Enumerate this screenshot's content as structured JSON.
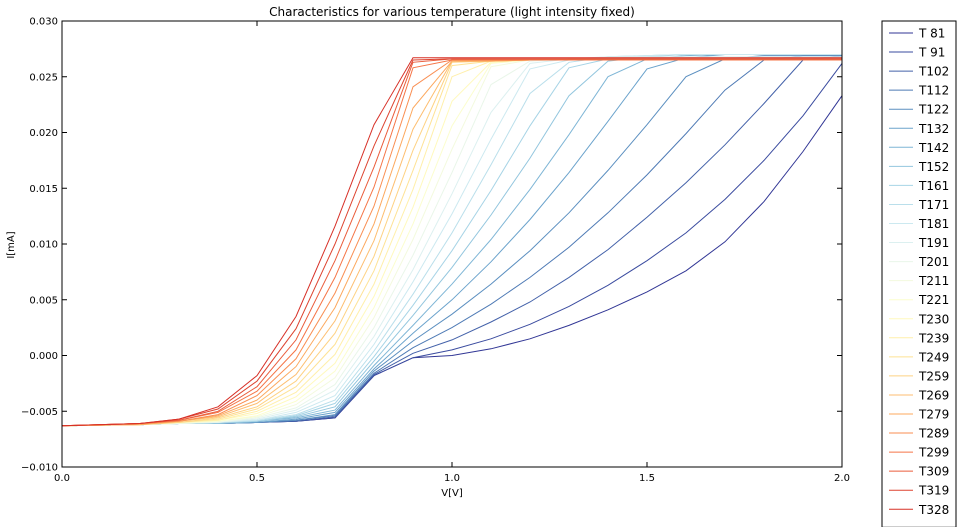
{
  "chart_data": {
    "type": "line",
    "title": "Characteristics for various temperature (light intensity fixed)",
    "xlabel": "V[V]",
    "ylabel": "I[mA]",
    "xlim": [
      0.0,
      2.0
    ],
    "ylim": [
      -0.01,
      0.03
    ],
    "x_ticks": [
      0.0,
      0.5,
      1.0,
      1.5,
      2.0
    ],
    "x_tick_labels": [
      "0.0",
      "0.5",
      "1.0",
      "1.5",
      "2.0"
    ],
    "y_ticks": [
      -0.01,
      -0.005,
      0.0,
      0.005,
      0.01,
      0.015,
      0.02,
      0.025,
      0.03
    ],
    "y_tick_labels": [
      "−0.010",
      "−0.005",
      "0.000",
      "0.005",
      "0.010",
      "0.015",
      "0.020",
      "0.025",
      "0.030"
    ],
    "grid": false,
    "legend_position": "outside-right",
    "x": [
      0.0,
      0.2,
      0.3,
      0.4,
      0.5,
      0.6,
      0.7,
      0.8,
      0.9,
      1.0,
      1.1,
      1.2,
      1.3,
      1.4,
      1.5,
      1.6,
      1.7,
      1.8,
      1.9,
      2.0
    ],
    "series": [
      {
        "name": "T 81",
        "color": "#313695",
        "values": [
          -0.0063,
          -0.0062,
          -0.0061,
          -0.0061,
          -0.006,
          -0.0059,
          -0.0056,
          -0.0018,
          -0.0002,
          0.0,
          0.0006,
          0.0015,
          0.0027,
          0.0041,
          0.0057,
          0.0076,
          0.0102,
          0.0138,
          0.0183,
          0.0233
        ]
      },
      {
        "name": "T 91",
        "color": "#3a4b9f",
        "values": [
          -0.0063,
          -0.0062,
          -0.0061,
          -0.0061,
          -0.006,
          -0.0059,
          -0.0056,
          -0.0018,
          -0.0002,
          0.0005,
          0.0015,
          0.0028,
          0.0044,
          0.0063,
          0.0085,
          0.011,
          0.014,
          0.0175,
          0.0215,
          0.0262
        ]
      },
      {
        "name": "T102",
        "color": "#4361a9",
        "values": [
          -0.0063,
          -0.0062,
          -0.0061,
          -0.0061,
          -0.006,
          -0.0059,
          -0.0055,
          -0.0017,
          0.0002,
          0.0014,
          0.003,
          0.0048,
          0.007,
          0.0095,
          0.0124,
          0.0155,
          0.0189,
          0.0226,
          0.0265,
          0.0269
        ]
      },
      {
        "name": "T112",
        "color": "#4e7ab5",
        "values": [
          -0.0063,
          -0.0062,
          -0.0061,
          -0.0061,
          -0.006,
          -0.0058,
          -0.0054,
          -0.0016,
          0.0007,
          0.0025,
          0.0046,
          0.007,
          0.0097,
          0.0128,
          0.0162,
          0.0199,
          0.0238,
          0.0265,
          0.0269,
          0.0269
        ]
      },
      {
        "name": "T122",
        "color": "#5b8fc0",
        "values": [
          -0.0063,
          -0.0062,
          -0.0061,
          -0.0061,
          -0.006,
          -0.0058,
          -0.0053,
          -0.0014,
          0.0013,
          0.0037,
          0.0064,
          0.0094,
          0.0128,
          0.0166,
          0.0207,
          0.025,
          0.0266,
          0.0269,
          0.0269,
          0.0269
        ]
      },
      {
        "name": "T132",
        "color": "#6ba3cc",
        "values": [
          -0.0063,
          -0.0062,
          -0.0061,
          -0.0061,
          -0.006,
          -0.0057,
          -0.0051,
          -0.0012,
          0.002,
          0.005,
          0.0084,
          0.0122,
          0.0164,
          0.021,
          0.0257,
          0.0267,
          0.027,
          0.027,
          0.027,
          0.027
        ]
      },
      {
        "name": "T142",
        "color": "#7fb6d6",
        "values": [
          -0.0063,
          -0.0062,
          -0.0061,
          -0.0061,
          -0.0059,
          -0.0056,
          -0.0049,
          -0.0009,
          0.0027,
          0.0064,
          0.0104,
          0.0149,
          0.0198,
          0.025,
          0.0266,
          0.0269,
          0.027,
          0.027,
          0.027,
          0.027
        ]
      },
      {
        "name": "T152",
        "color": "#93c6de",
        "values": [
          -0.0063,
          -0.0062,
          -0.0061,
          -0.0061,
          -0.0059,
          -0.0055,
          -0.0046,
          -0.0005,
          0.0036,
          0.0079,
          0.0126,
          0.0177,
          0.0233,
          0.0264,
          0.0268,
          0.027,
          0.027,
          0.027,
          0.027,
          0.027
        ]
      },
      {
        "name": "T161",
        "color": "#a7d4e6",
        "values": [
          -0.0063,
          -0.0062,
          -0.0061,
          -0.006,
          -0.0059,
          -0.0054,
          -0.0043,
          -0.0001,
          0.0045,
          0.0094,
          0.0148,
          0.0206,
          0.0258,
          0.0266,
          0.0269,
          0.027,
          0.027,
          0.027,
          0.027,
          0.027
        ]
      },
      {
        "name": "T171",
        "color": "#badfeb",
        "values": [
          -0.0063,
          -0.0062,
          -0.0061,
          -0.006,
          -0.0058,
          -0.0053,
          -0.004,
          0.0004,
          0.0055,
          0.011,
          0.0171,
          0.0235,
          0.0263,
          0.0268,
          0.0269,
          0.027,
          0.027,
          0.027,
          0.027,
          0.027
        ]
      },
      {
        "name": "T181",
        "color": "#cce9f0",
        "values": [
          -0.0063,
          -0.0062,
          -0.0061,
          -0.006,
          -0.0058,
          -0.0051,
          -0.0036,
          0.001,
          0.0066,
          0.0127,
          0.0194,
          0.0257,
          0.0265,
          0.0268,
          0.0269,
          0.027,
          0.027,
          0.027,
          0.027,
          0.027
        ]
      },
      {
        "name": "T191",
        "color": "#dcf0f0",
        "values": [
          -0.0063,
          -0.0062,
          -0.0061,
          -0.006,
          -0.0057,
          -0.0049,
          -0.0031,
          0.0017,
          0.0077,
          0.0145,
          0.0218,
          0.0262,
          0.0266,
          0.0268,
          0.0268,
          0.0268,
          0.0268,
          0.0268,
          0.0268,
          0.0268
        ]
      },
      {
        "name": "T201",
        "color": "#e9f6e9",
        "values": [
          -0.0063,
          -0.0062,
          -0.0061,
          -0.006,
          -0.0056,
          -0.0047,
          -0.0026,
          0.0025,
          0.009,
          0.0164,
          0.0243,
          0.0264,
          0.0266,
          0.0267,
          0.0267,
          0.0267,
          0.0267,
          0.0267,
          0.0267,
          0.0267
        ]
      },
      {
        "name": "T211",
        "color": "#f3fade",
        "values": [
          -0.0063,
          -0.0062,
          -0.0061,
          -0.0059,
          -0.0055,
          -0.0044,
          -0.002,
          0.0034,
          0.0104,
          0.0185,
          0.0259,
          0.0265,
          0.0266,
          0.0267,
          0.0267,
          0.0267,
          0.0267,
          0.0267,
          0.0267,
          0.0267
        ]
      },
      {
        "name": "T221",
        "color": "#fbfdce",
        "values": [
          -0.0063,
          -0.0062,
          -0.006,
          -0.0059,
          -0.0054,
          -0.0041,
          -0.0014,
          0.0043,
          0.0118,
          0.0206,
          0.0262,
          0.0265,
          0.0266,
          0.0266,
          0.0266,
          0.0266,
          0.0266,
          0.0266,
          0.0266,
          0.0266
        ]
      },
      {
        "name": "T230",
        "color": "#fff9bd",
        "values": [
          -0.0063,
          -0.0062,
          -0.006,
          -0.0058,
          -0.0052,
          -0.0037,
          -0.0007,
          0.0053,
          0.0133,
          0.0228,
          0.0263,
          0.0265,
          0.0266,
          0.0266,
          0.0266,
          0.0266,
          0.0266,
          0.0266,
          0.0266,
          0.0266
        ]
      },
      {
        "name": "T239",
        "color": "#ffefaa",
        "values": [
          -0.0063,
          -0.0062,
          -0.006,
          -0.0058,
          -0.005,
          -0.0033,
          0.0001,
          0.0064,
          0.0149,
          0.025,
          0.0264,
          0.0265,
          0.0266,
          0.0266,
          0.0266,
          0.0266,
          0.0266,
          0.0266,
          0.0266,
          0.0266
        ]
      },
      {
        "name": "T249",
        "color": "#fee295",
        "values": [
          -0.0063,
          -0.0062,
          -0.006,
          -0.0057,
          -0.0048,
          -0.0028,
          0.001,
          0.0076,
          0.0166,
          0.026,
          0.0264,
          0.0265,
          0.0265,
          0.0265,
          0.0265,
          0.0265,
          0.0265,
          0.0265,
          0.0265,
          0.0265
        ]
      },
      {
        "name": "T259",
        "color": "#fed283",
        "values": [
          -0.0063,
          -0.0062,
          -0.006,
          -0.0056,
          -0.0046,
          -0.0023,
          0.002,
          0.0089,
          0.0184,
          0.0263,
          0.0264,
          0.0265,
          0.0265,
          0.0265,
          0.0265,
          0.0265,
          0.0265,
          0.0265,
          0.0265,
          0.0265
        ]
      },
      {
        "name": "T269",
        "color": "#fdbe70",
        "values": [
          -0.0063,
          -0.0062,
          -0.0059,
          -0.0055,
          -0.0043,
          -0.0017,
          0.0031,
          0.0103,
          0.0203,
          0.0264,
          0.0264,
          0.0265,
          0.0265,
          0.0265,
          0.0265,
          0.0265,
          0.0265,
          0.0265,
          0.0265,
          0.0265
        ]
      },
      {
        "name": "T279",
        "color": "#fca85e",
        "values": [
          -0.0063,
          -0.0062,
          -0.0059,
          -0.0054,
          -0.004,
          -0.001,
          0.0043,
          0.0118,
          0.0222,
          0.0264,
          0.0264,
          0.0265,
          0.0265,
          0.0265,
          0.0265,
          0.0265,
          0.0265,
          0.0265,
          0.0265,
          0.0265
        ]
      },
      {
        "name": "T289",
        "color": "#f98e52",
        "values": [
          -0.0063,
          -0.0061,
          -0.0059,
          -0.0053,
          -0.0036,
          -0.0003,
          0.0056,
          0.0134,
          0.0241,
          0.0265,
          0.0265,
          0.0265,
          0.0265,
          0.0265,
          0.0265,
          0.0265,
          0.0265,
          0.0265,
          0.0265,
          0.0265
        ]
      },
      {
        "name": "T299",
        "color": "#f57547",
        "values": [
          -0.0063,
          -0.0061,
          -0.0058,
          -0.0051,
          -0.0032,
          0.0005,
          0.007,
          0.0151,
          0.0258,
          0.0265,
          0.0265,
          0.0265,
          0.0265,
          0.0265,
          0.0265,
          0.0265,
          0.0265,
          0.0265,
          0.0265,
          0.0265
        ]
      },
      {
        "name": "T309",
        "color": "#ea5c3b",
        "values": [
          -0.0063,
          -0.0061,
          -0.0058,
          -0.005,
          -0.0028,
          0.0014,
          0.0085,
          0.0169,
          0.0263,
          0.0266,
          0.0266,
          0.0266,
          0.0266,
          0.0266,
          0.0266,
          0.0266,
          0.0266,
          0.0266,
          0.0266,
          0.0266
        ]
      },
      {
        "name": "T319",
        "color": "#dd4430",
        "values": [
          -0.0063,
          -0.0061,
          -0.0057,
          -0.0048,
          -0.0023,
          0.0024,
          0.01,
          0.0188,
          0.0265,
          0.0266,
          0.0266,
          0.0266,
          0.0266,
          0.0266,
          0.0266,
          0.0266,
          0.0266,
          0.0266,
          0.0266,
          0.0266
        ]
      },
      {
        "name": "T328",
        "color": "#d73027",
        "values": [
          -0.0063,
          -0.0061,
          -0.0057,
          -0.0046,
          -0.0018,
          0.0035,
          0.0116,
          0.0207,
          0.0267,
          0.0267,
          0.0267,
          0.0267,
          0.0267,
          0.0267,
          0.0267,
          0.0267,
          0.0267,
          0.0267,
          0.0267,
          0.0267
        ]
      }
    ]
  }
}
